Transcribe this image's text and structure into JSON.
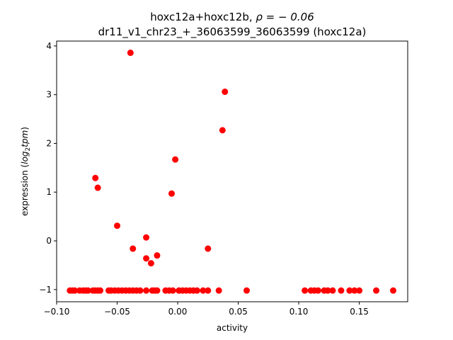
{
  "chart_data": {
    "type": "scatter",
    "title_line1_prefix": "hoxc12a+hoxc12b, ",
    "title_line1_rho": "ρ = − 0.06",
    "title_line2": "dr11_v1_chr23_+_36063599_36063599 (hoxc12a)",
    "xlabel": "activity",
    "ylabel_prefix": "expression (",
    "ylabel_log": "log",
    "ylabel_sub": "2",
    "ylabel_tpm": "tpm",
    "ylabel_suffix": ")",
    "xlim": [
      -0.1,
      0.19
    ],
    "ylim": [
      -1.25,
      4.1
    ],
    "xticks": [
      {
        "value": -0.1,
        "label": "−0.10"
      },
      {
        "value": -0.05,
        "label": "−0.05"
      },
      {
        "value": 0.0,
        "label": "0.00"
      },
      {
        "value": 0.05,
        "label": "0.05"
      },
      {
        "value": 0.1,
        "label": "0.10"
      },
      {
        "value": 0.15,
        "label": "0.15"
      }
    ],
    "yticks": [
      {
        "value": -1,
        "label": "−1"
      },
      {
        "value": 0,
        "label": "0"
      },
      {
        "value": 1,
        "label": "1"
      },
      {
        "value": 2,
        "label": "2"
      },
      {
        "value": 3,
        "label": "3"
      },
      {
        "value": 4,
        "label": "4"
      }
    ],
    "grid": false,
    "color": "#ff0000",
    "points": [
      {
        "x": -0.039,
        "y": 3.86
      },
      {
        "x": 0.039,
        "y": 3.06
      },
      {
        "x": 0.037,
        "y": 2.27
      },
      {
        "x": -0.002,
        "y": 1.67
      },
      {
        "x": -0.068,
        "y": 1.29
      },
      {
        "x": -0.066,
        "y": 1.09
      },
      {
        "x": -0.005,
        "y": 0.97
      },
      {
        "x": -0.05,
        "y": 0.31
      },
      {
        "x": -0.026,
        "y": 0.07
      },
      {
        "x": -0.037,
        "y": -0.16
      },
      {
        "x": 0.025,
        "y": -0.16
      },
      {
        "x": -0.017,
        "y": -0.3
      },
      {
        "x": -0.026,
        "y": -0.36
      },
      {
        "x": -0.022,
        "y": -0.46
      },
      {
        "x": -0.089,
        "y": -1.02
      },
      {
        "x": -0.087,
        "y": -1.02
      },
      {
        "x": -0.085,
        "y": -1.02
      },
      {
        "x": -0.081,
        "y": -1.02
      },
      {
        "x": -0.078,
        "y": -1.02
      },
      {
        "x": -0.076,
        "y": -1.02
      },
      {
        "x": -0.074,
        "y": -1.02
      },
      {
        "x": -0.07,
        "y": -1.02
      },
      {
        "x": -0.068,
        "y": -1.02
      },
      {
        "x": -0.066,
        "y": -1.02
      },
      {
        "x": -0.064,
        "y": -1.02
      },
      {
        "x": -0.057,
        "y": -1.02
      },
      {
        "x": -0.055,
        "y": -1.02
      },
      {
        "x": -0.052,
        "y": -1.02
      },
      {
        "x": -0.049,
        "y": -1.02
      },
      {
        "x": -0.046,
        "y": -1.02
      },
      {
        "x": -0.043,
        "y": -1.02
      },
      {
        "x": -0.04,
        "y": -1.02
      },
      {
        "x": -0.037,
        "y": -1.02
      },
      {
        "x": -0.034,
        "y": -1.02
      },
      {
        "x": -0.031,
        "y": -1.02
      },
      {
        "x": -0.026,
        "y": -1.02
      },
      {
        "x": -0.021,
        "y": -1.02
      },
      {
        "x": -0.019,
        "y": -1.02
      },
      {
        "x": -0.017,
        "y": -1.02
      },
      {
        "x": -0.01,
        "y": -1.02
      },
      {
        "x": -0.007,
        "y": -1.02
      },
      {
        "x": -0.004,
        "y": -1.02
      },
      {
        "x": 0.001,
        "y": -1.02
      },
      {
        "x": 0.004,
        "y": -1.02
      },
      {
        "x": 0.007,
        "y": -1.02
      },
      {
        "x": 0.01,
        "y": -1.02
      },
      {
        "x": 0.013,
        "y": -1.02
      },
      {
        "x": 0.016,
        "y": -1.02
      },
      {
        "x": 0.021,
        "y": -1.02
      },
      {
        "x": 0.025,
        "y": -1.02
      },
      {
        "x": 0.034,
        "y": -1.02
      },
      {
        "x": 0.057,
        "y": -1.02
      },
      {
        "x": 0.105,
        "y": -1.02
      },
      {
        "x": 0.11,
        "y": -1.02
      },
      {
        "x": 0.113,
        "y": -1.02
      },
      {
        "x": 0.116,
        "y": -1.02
      },
      {
        "x": 0.121,
        "y": -1.02
      },
      {
        "x": 0.124,
        "y": -1.02
      },
      {
        "x": 0.128,
        "y": -1.02
      },
      {
        "x": 0.135,
        "y": -1.02
      },
      {
        "x": 0.142,
        "y": -1.02
      },
      {
        "x": 0.146,
        "y": -1.02
      },
      {
        "x": 0.15,
        "y": -1.02
      },
      {
        "x": 0.164,
        "y": -1.02
      },
      {
        "x": 0.178,
        "y": -1.02
      }
    ]
  }
}
